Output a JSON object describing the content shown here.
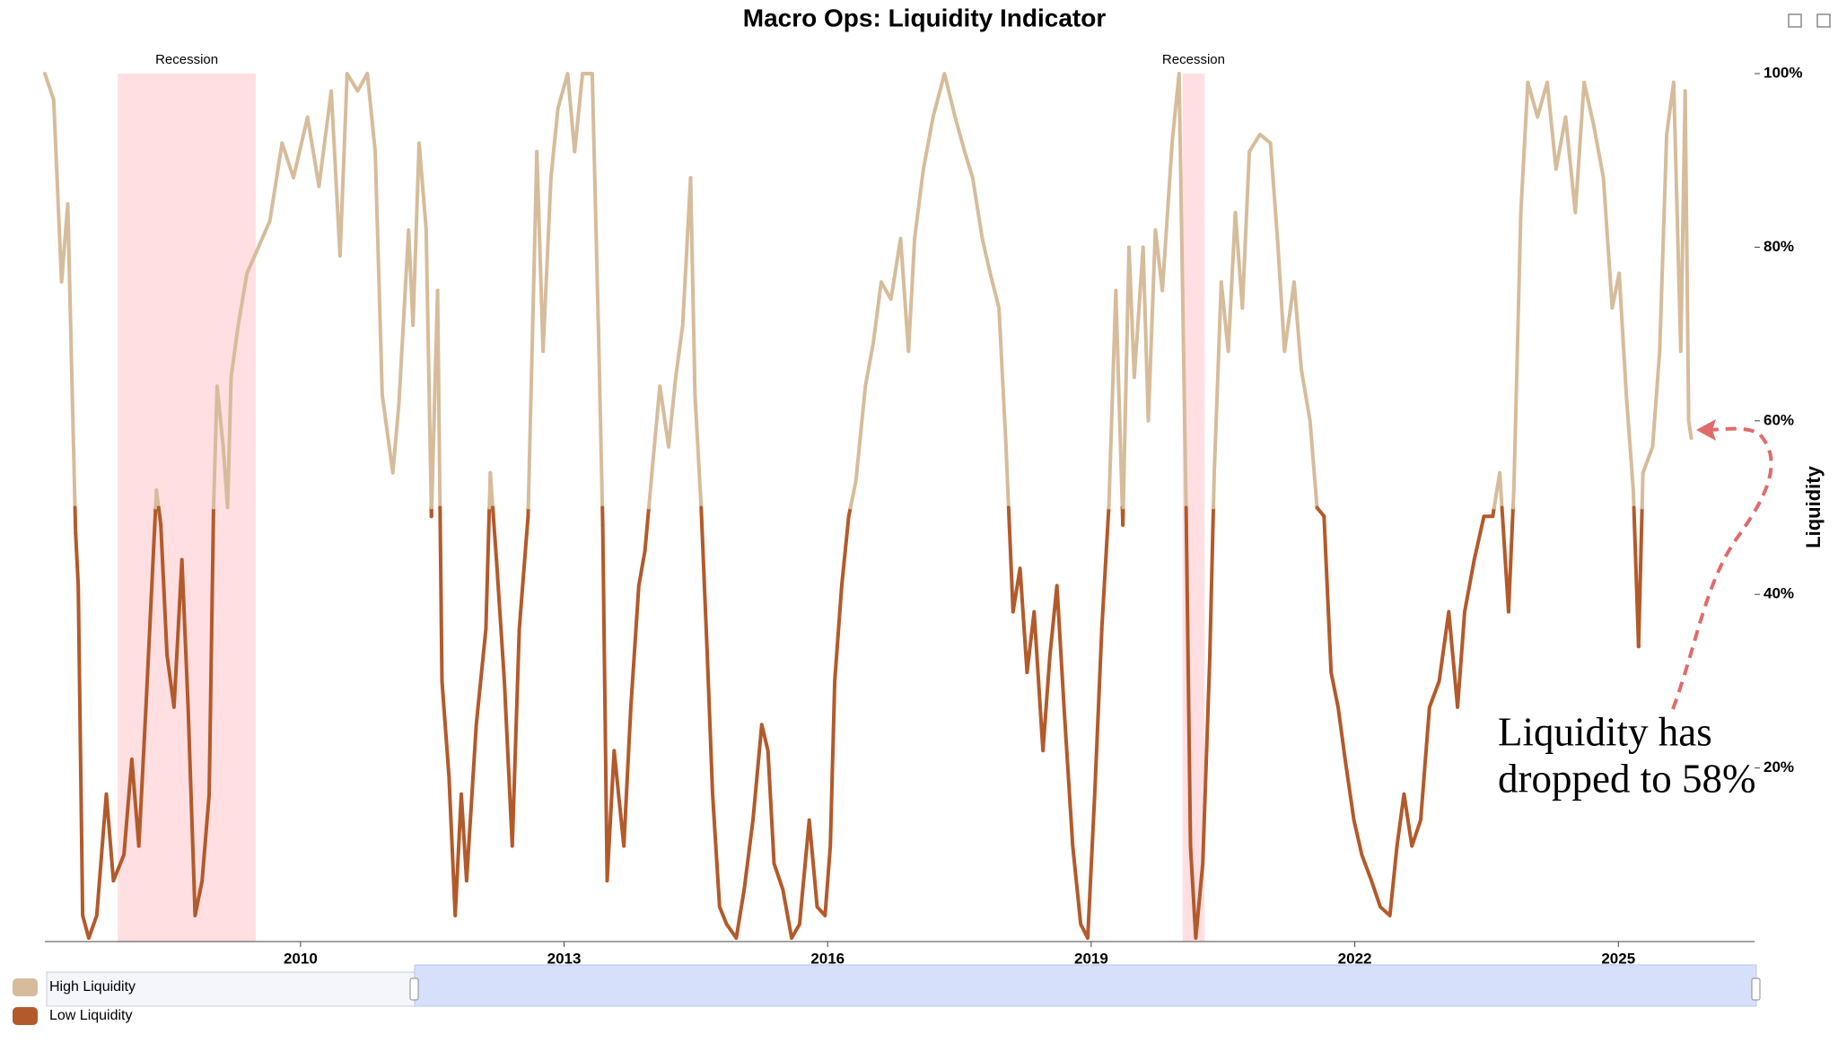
{
  "chart_data": {
    "type": "line",
    "title": "Macro Ops: Liquidity Indicator",
    "y_label": "Liquidity",
    "x": [
      2007.09,
      2007.19,
      2007.28,
      2007.35,
      2007.39,
      2007.44,
      2007.47,
      2007.52,
      2007.59,
      2007.68,
      2007.79,
      2007.87,
      2007.99,
      2008.08,
      2008.16,
      2008.25,
      2008.36,
      2008.41,
      2008.48,
      2008.56,
      2008.65,
      2008.72,
      2008.8,
      2008.88,
      2008.96,
      2009.01,
      2009.05,
      2009.12,
      2009.17,
      2009.21,
      2009.29,
      2009.39,
      2009.52,
      2009.65,
      2009.79,
      2009.92,
      2010.08,
      2010.21,
      2010.35,
      2010.45,
      2010.53,
      2010.65,
      2010.76,
      2010.85,
      2010.93,
      2011.05,
      2011.12,
      2011.23,
      2011.28,
      2011.35,
      2011.43,
      2011.49,
      2011.56,
      2011.61,
      2011.69,
      2011.76,
      2011.83,
      2011.89,
      2012.0,
      2012.11,
      2012.16,
      2012.23,
      2012.32,
      2012.41,
      2012.49,
      2012.59,
      2012.69,
      2012.76,
      2012.85,
      2012.93,
      2013.04,
      2013.12,
      2013.21,
      2013.32,
      2013.39,
      2013.44,
      2013.49,
      2013.57,
      2013.68,
      2013.76,
      2013.85,
      2013.92,
      2014.0,
      2014.09,
      2014.19,
      2014.27,
      2014.35,
      2014.44,
      2014.49,
      2014.56,
      2014.63,
      2014.69,
      2014.77,
      2014.85,
      2014.96,
      2015.05,
      2015.15,
      2015.25,
      2015.32,
      2015.39,
      2015.49,
      2015.59,
      2015.68,
      2015.79,
      2015.88,
      2015.97,
      2016.03,
      2016.08,
      2016.16,
      2016.24,
      2016.32,
      2016.43,
      2016.52,
      2016.61,
      2016.72,
      2016.83,
      2016.92,
      2016.99,
      2017.09,
      2017.2,
      2017.33,
      2017.45,
      2017.56,
      2017.65,
      2017.76,
      2017.85,
      2017.95,
      2018.03,
      2018.11,
      2018.19,
      2018.27,
      2018.35,
      2018.45,
      2018.53,
      2018.61,
      2018.69,
      2018.79,
      2018.88,
      2018.96,
      2019.04,
      2019.12,
      2019.2,
      2019.28,
      2019.36,
      2019.43,
      2019.49,
      2019.59,
      2019.65,
      2019.73,
      2019.81,
      2019.92,
      2020.0,
      2020.08,
      2020.13,
      2020.19,
      2020.27,
      2020.35,
      2020.4,
      2020.48,
      2020.56,
      2020.64,
      2020.72,
      2020.8,
      2020.92,
      2021.04,
      2021.12,
      2021.2,
      2021.31,
      2021.39,
      2021.49,
      2021.57,
      2021.65,
      2021.73,
      2021.81,
      2021.89,
      2021.99,
      2022.08,
      2022.19,
      2022.29,
      2022.4,
      2022.48,
      2022.56,
      2022.65,
      2022.75,
      2022.85,
      2022.96,
      2023.07,
      2023.17,
      2023.25,
      2023.36,
      2023.47,
      2023.57,
      2023.65,
      2023.75,
      2023.81,
      2023.89,
      2023.97,
      2024.08,
      2024.19,
      2024.29,
      2024.4,
      2024.51,
      2024.61,
      2024.72,
      2024.83,
      2024.93,
      2025.01,
      2025.09,
      2025.17,
      2025.23,
      2025.28,
      2025.39,
      2025.47,
      2025.55,
      2025.63,
      2025.71,
      2025.76,
      2025.8,
      2025.83
    ],
    "values": [
      100,
      97,
      76,
      85,
      68,
      47,
      41,
      3,
      0.4,
      3,
      17,
      7,
      10,
      21,
      11,
      29,
      52,
      48,
      33,
      27,
      44,
      27,
      3,
      7,
      17,
      50,
      64,
      57,
      50,
      65,
      71,
      77,
      80,
      83,
      92,
      88,
      95,
      87,
      98,
      79,
      100,
      98,
      100,
      91,
      63,
      54,
      62,
      82,
      71,
      92,
      82,
      49,
      75,
      30,
      19,
      3,
      17,
      7,
      25,
      36,
      54,
      44,
      30,
      11,
      36,
      49,
      91,
      68,
      88,
      96,
      100,
      91,
      100,
      100,
      71,
      48,
      7,
      22,
      11,
      27,
      41,
      45,
      54,
      64,
      57,
      65,
      71,
      88,
      63,
      50,
      33,
      17,
      4,
      2,
      0.4,
      6,
      14,
      25,
      22,
      9,
      6,
      0.4,
      2,
      14,
      4,
      3,
      11,
      30,
      41,
      49,
      53,
      64,
      69,
      76,
      74,
      81,
      68,
      81,
      89,
      95,
      100,
      95,
      91,
      88,
      81,
      77,
      73,
      57,
      38,
      43,
      31,
      38,
      22,
      33,
      41,
      27,
      11,
      2,
      0.4,
      17,
      36,
      50,
      75,
      48,
      80,
      65,
      80,
      60,
      82,
      75,
      92,
      100,
      50,
      11,
      0.4,
      9,
      33,
      54,
      76,
      68,
      84,
      73,
      91,
      93,
      92,
      81,
      68,
      76,
      66,
      60,
      50,
      49,
      31,
      27,
      21,
      14,
      10,
      7,
      4,
      3,
      11,
      17,
      11,
      14,
      27,
      30,
      38,
      27,
      38,
      44,
      49,
      49,
      54,
      38,
      52,
      84,
      99,
      95,
      99,
      89,
      95,
      84,
      99,
      94,
      88,
      73,
      77,
      63,
      52,
      34,
      54,
      57,
      68,
      93,
      99,
      68,
      98,
      60,
      58
    ],
    "threshold": 50,
    "legend": [
      {
        "name": "High Liquidity",
        "color": "#d6bc9b"
      },
      {
        "name": "Low Liquidity",
        "color": "#b35a2b"
      }
    ],
    "xlim": [
      2007.09,
      2026.55
    ],
    "xticks": [
      2010,
      2013,
      2016,
      2019,
      2022,
      2025
    ],
    "ylim": [
      0,
      100
    ],
    "yticks": [
      {
        "value": 20,
        "label": "20%"
      },
      {
        "value": 40,
        "label": "40%"
      },
      {
        "value": 60,
        "label": "60%"
      },
      {
        "value": 80,
        "label": "80%"
      },
      {
        "value": 100,
        "label": "100%"
      }
    ],
    "bands": [
      {
        "label": "Recession",
        "from": 2007.92,
        "to": 2009.49
      },
      {
        "label": "Recession",
        "from": 2020.04,
        "to": 2020.29
      }
    ],
    "annotation": [
      "Liquidity has",
      "dropped to 58%"
    ]
  }
}
